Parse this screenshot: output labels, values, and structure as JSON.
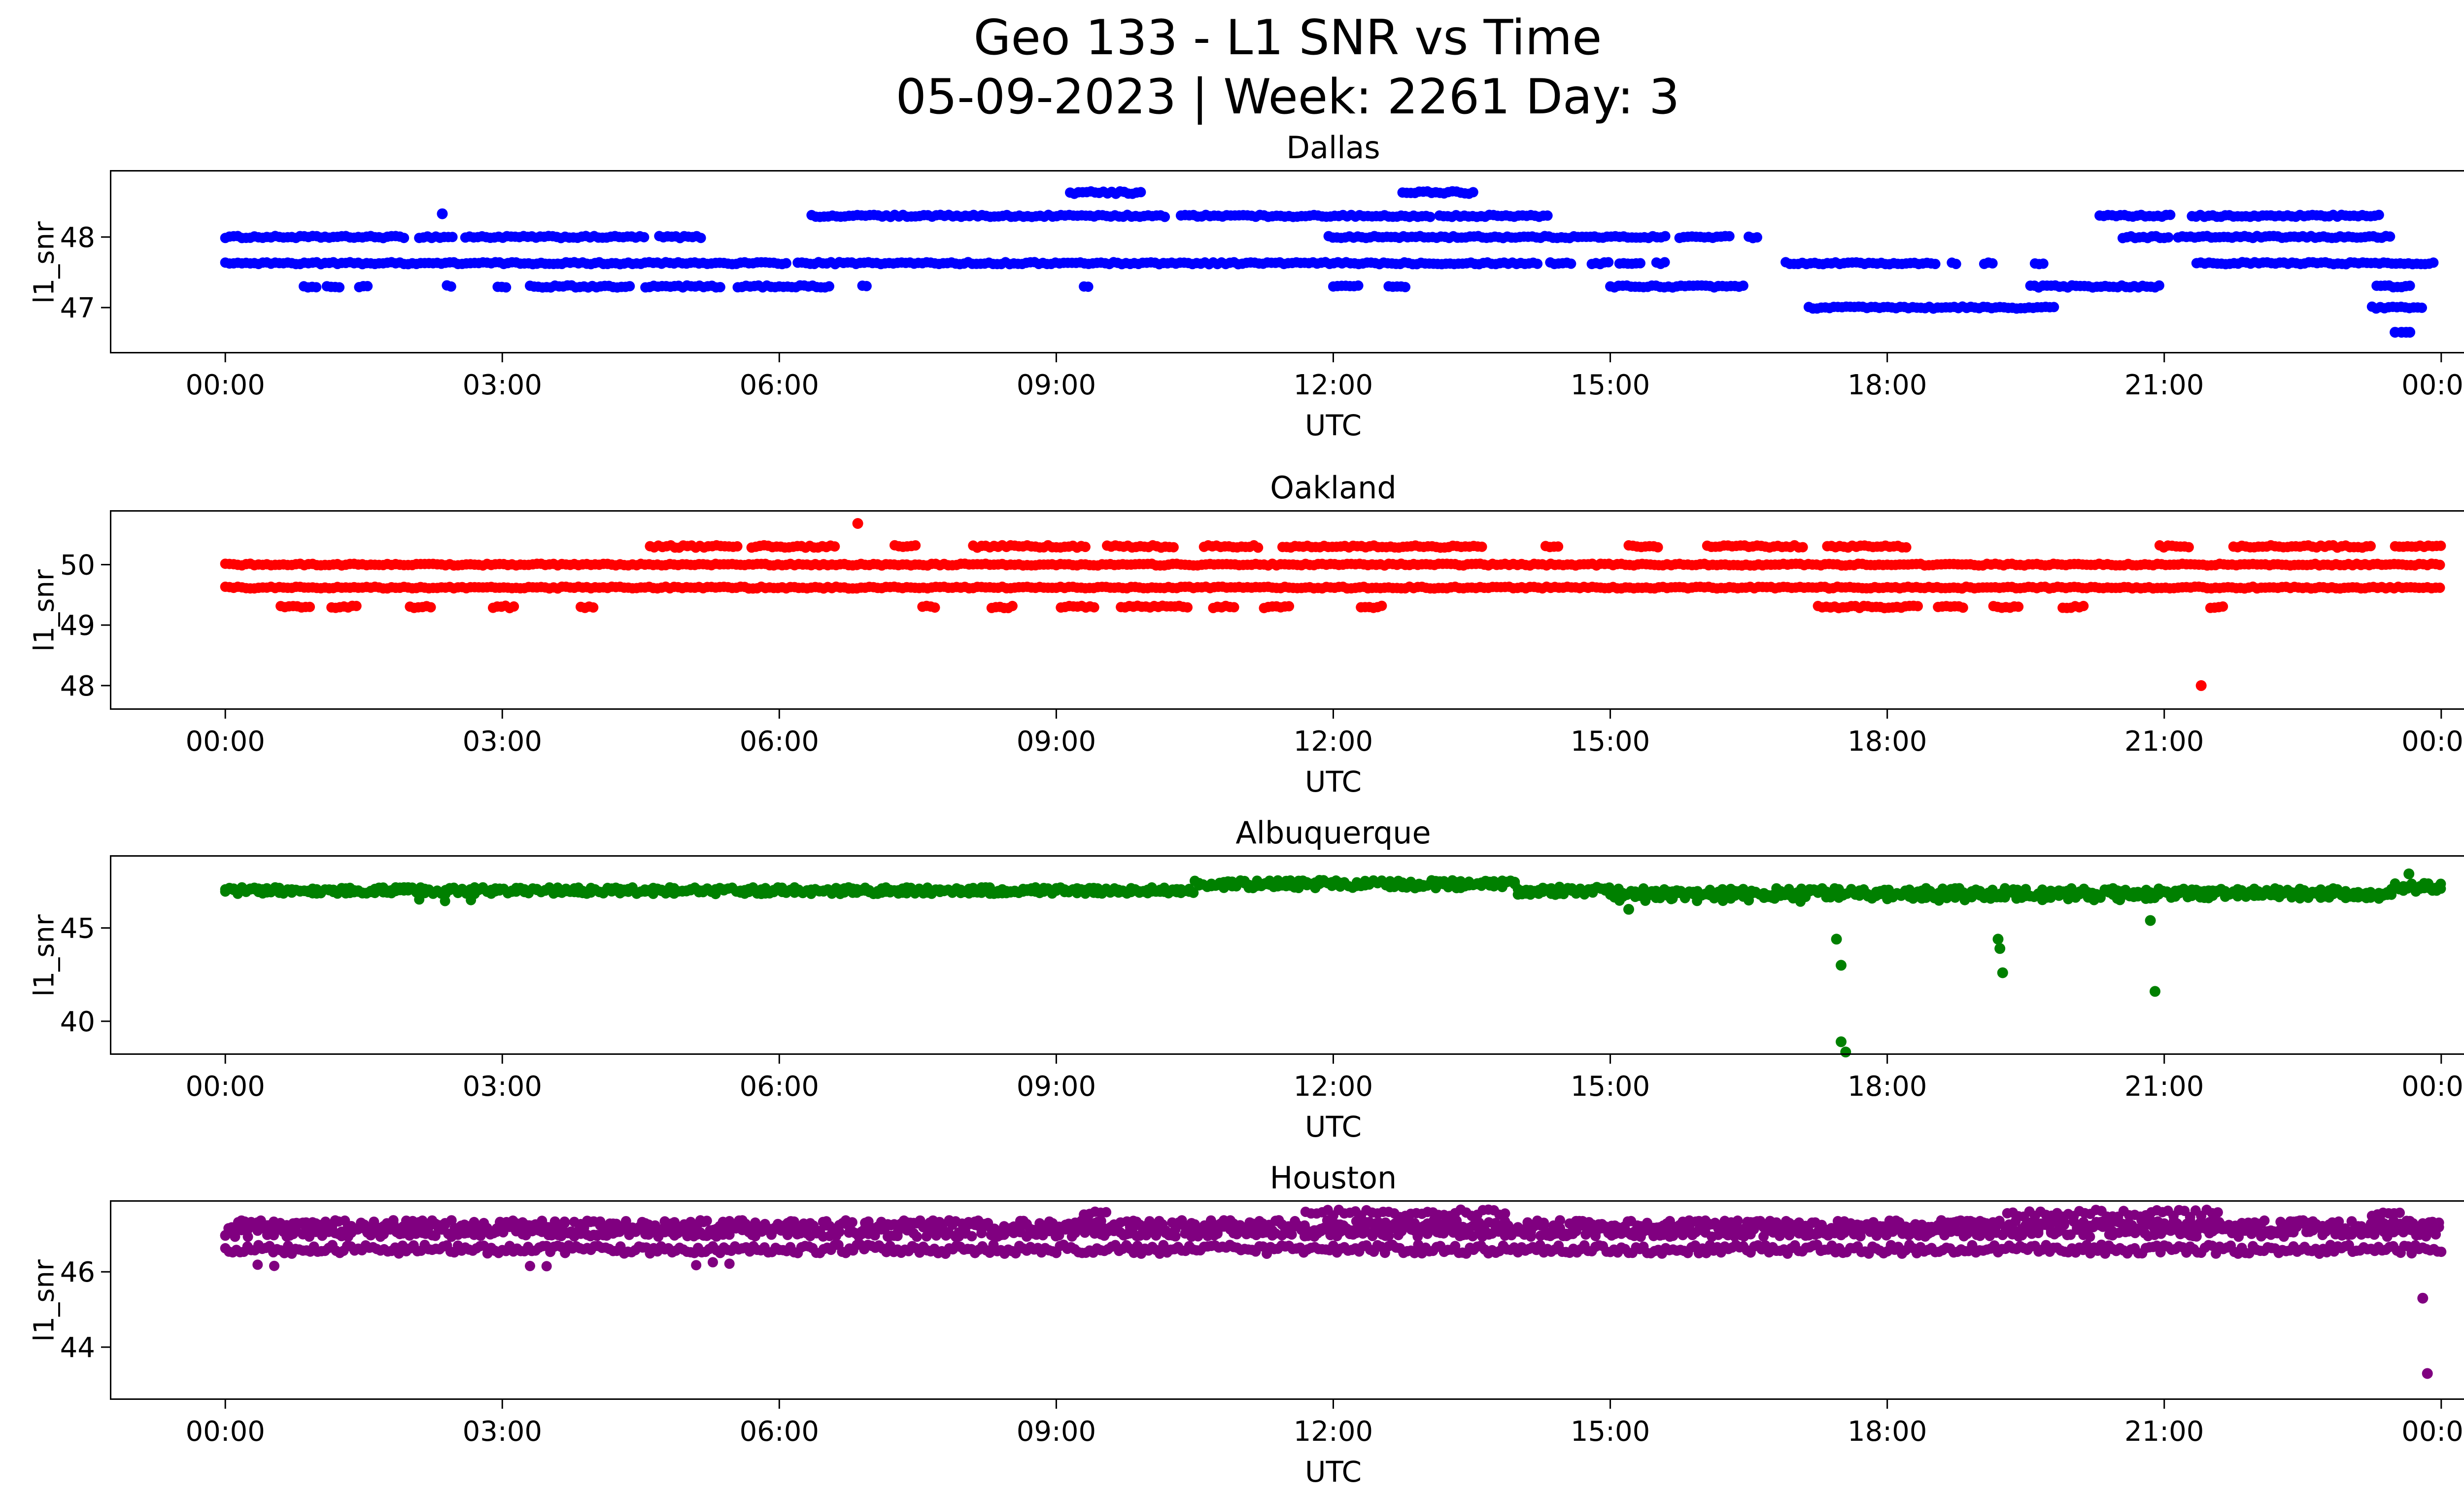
{
  "figure": {
    "title": "Geo 133 - L1 SNR vs Time",
    "subtitle": "05-09-2023 | Week: 2261 Day: 3",
    "background": "#ffffff"
  },
  "chart_data": [
    {
      "type": "scatter",
      "title": "Dallas",
      "color": "#0000ff",
      "xlabel": "UTC",
      "ylabel": "l1_snr",
      "xlim": [
        -1.25,
        25.25
      ],
      "ylim": [
        46.35,
        48.95
      ],
      "xticks": [
        0,
        3,
        6,
        9,
        12,
        15,
        18,
        21,
        24
      ],
      "xtick_labels": [
        "00:00",
        "03:00",
        "06:00",
        "09:00",
        "12:00",
        "15:00",
        "18:00",
        "21:00",
        "00:00"
      ],
      "yticks": [
        47,
        48
      ],
      "grid": false,
      "legend": "none",
      "bands": [
        {
          "y": 48.0,
          "jitter": 0.015,
          "segments": [
            [
              0.0,
              1.95
            ],
            [
              2.1,
              2.5
            ],
            [
              2.6,
              4.55
            ],
            [
              4.7,
              5.15
            ],
            [
              11.95,
              15.6
            ],
            [
              15.75,
              16.3
            ],
            [
              16.5,
              16.62
            ],
            [
              20.55,
              21.05
            ],
            [
              21.15,
              23.45
            ]
          ]
        },
        {
          "y": 47.63,
          "jitter": 0.015,
          "segments": [
            [
              0.0,
              6.1
            ],
            [
              6.2,
              14.25
            ],
            [
              14.35,
              14.6
            ],
            [
              14.8,
              15.0
            ],
            [
              15.1,
              15.35
            ],
            [
              15.5,
              15.6
            ],
            [
              16.9,
              18.55
            ],
            [
              18.7,
              18.78
            ],
            [
              19.05,
              19.15
            ],
            [
              19.6,
              19.7
            ],
            [
              21.35,
              23.95
            ]
          ]
        },
        {
          "y": 47.3,
          "jitter": 0.015,
          "segments": [
            [
              0.85,
              1.0
            ],
            [
              1.1,
              1.25
            ],
            [
              1.45,
              1.55
            ],
            [
              2.4,
              2.48
            ],
            [
              2.95,
              3.05
            ],
            [
              3.3,
              4.4
            ],
            [
              4.55,
              5.4
            ],
            [
              5.55,
              6.55
            ],
            [
              6.9,
              6.98
            ],
            [
              9.3,
              9.38
            ],
            [
              12.0,
              12.3
            ],
            [
              12.6,
              12.8
            ],
            [
              15.0,
              16.45
            ],
            [
              19.55,
              20.95
            ],
            [
              23.3,
              23.7
            ]
          ]
        },
        {
          "y": 47.0,
          "jitter": 0.015,
          "segments": [
            [
              17.15,
              19.85
            ],
            [
              23.25,
              23.8
            ]
          ]
        },
        {
          "y": 48.3,
          "jitter": 0.015,
          "segments": [
            [
              6.35,
              10.2
            ],
            [
              10.35,
              13.05
            ],
            [
              13.15,
              14.35
            ],
            [
              20.3,
              21.1
            ],
            [
              21.3,
              23.35
            ]
          ]
        },
        {
          "y": 48.63,
          "jitter": 0.02,
          "segments": [
            [
              9.15,
              9.95
            ],
            [
              12.75,
              13.55
            ]
          ]
        }
      ],
      "points": [
        [
          2.35,
          48.33
        ],
        [
          23.5,
          46.65
        ],
        [
          23.57,
          46.65
        ],
        [
          23.62,
          46.65
        ],
        [
          23.66,
          46.65
        ]
      ]
    },
    {
      "type": "scatter",
      "title": "Oakland",
      "color": "#ff0000",
      "xlabel": "UTC",
      "ylabel": "l1_snr",
      "xlim": [
        -1.25,
        25.25
      ],
      "ylim": [
        47.6,
        50.9
      ],
      "xticks": [
        0,
        3,
        6,
        9,
        12,
        15,
        18,
        21,
        24
      ],
      "xtick_labels": [
        "00:00",
        "03:00",
        "06:00",
        "09:00",
        "12:00",
        "15:00",
        "18:00",
        "21:00",
        "00:00"
      ],
      "yticks": [
        48,
        49,
        50
      ],
      "grid": false,
      "legend": "none",
      "bands": [
        {
          "y": 50.0,
          "jitter": 0.015,
          "segments": [
            [
              0.0,
              24.0
            ]
          ]
        },
        {
          "y": 49.62,
          "jitter": 0.015,
          "segments": [
            [
              0.0,
              24.0
            ]
          ]
        },
        {
          "y": 50.3,
          "jitter": 0.02,
          "segments": [
            [
              4.6,
              5.55
            ],
            [
              5.7,
              6.6
            ],
            [
              7.25,
              7.5
            ],
            [
              8.1,
              9.35
            ],
            [
              9.55,
              10.3
            ],
            [
              10.6,
              11.2
            ],
            [
              11.45,
              13.65
            ],
            [
              14.3,
              14.45
            ],
            [
              15.2,
              15.55
            ],
            [
              16.05,
              17.1
            ],
            [
              17.35,
              18.25
            ],
            [
              20.95,
              21.3
            ],
            [
              21.75,
              23.25
            ],
            [
              23.5,
              24.0
            ]
          ]
        },
        {
          "y": 49.3,
          "jitter": 0.02,
          "segments": [
            [
              0.6,
              0.95
            ],
            [
              1.15,
              1.45
            ],
            [
              2.0,
              2.25
            ],
            [
              2.9,
              3.15
            ],
            [
              3.85,
              4.0
            ],
            [
              7.55,
              7.72
            ],
            [
              8.3,
              8.55
            ],
            [
              9.05,
              9.45
            ],
            [
              9.7,
              10.45
            ],
            [
              10.7,
              10.95
            ],
            [
              11.25,
              11.55
            ],
            [
              12.3,
              12.55
            ],
            [
              17.25,
              18.35
            ],
            [
              18.55,
              18.85
            ],
            [
              19.15,
              19.45
            ],
            [
              19.9,
              20.15
            ],
            [
              21.5,
              21.65
            ]
          ]
        }
      ],
      "points": [
        [
          6.85,
          50.68
        ],
        [
          21.4,
          48.0
        ]
      ]
    },
    {
      "type": "scatter",
      "title": "Albuquerque",
      "color": "#008000",
      "xlabel": "UTC",
      "ylabel": "l1_snr",
      "xlim": [
        -1.25,
        25.25
      ],
      "ylim": [
        38.2,
        48.9
      ],
      "xticks": [
        0,
        3,
        6,
        9,
        12,
        15,
        18,
        21,
        24
      ],
      "xtick_labels": [
        "00:00",
        "03:00",
        "06:00",
        "09:00",
        "12:00",
        "15:00",
        "18:00",
        "21:00",
        "00:00"
      ],
      "yticks": [
        40,
        45
      ],
      "grid": false,
      "legend": "none",
      "bands": [
        {
          "y": 47.0,
          "jitter": 0.18,
          "density": 2,
          "segments": [
            [
              0.0,
              10.5
            ]
          ]
        },
        {
          "y": 47.35,
          "jitter": 0.22,
          "density": 2,
          "segments": [
            [
              10.5,
              14.0
            ]
          ]
        },
        {
          "y": 47.0,
          "jitter": 0.22,
          "density": 2,
          "segments": [
            [
              14.0,
              15.0
            ]
          ]
        },
        {
          "y": 46.85,
          "jitter": 0.28,
          "density": 2,
          "segments": [
            [
              15.0,
              23.5
            ]
          ]
        },
        {
          "y": 47.2,
          "jitter": 0.25,
          "density": 2,
          "segments": [
            [
              23.5,
              24.0
            ]
          ]
        },
        {
          "y": 46.5,
          "jitter": 0.1,
          "step": 0.28,
          "segments": [
            [
              2.1,
              2.9
            ],
            [
              15.1,
              17.2
            ],
            [
              18.0,
              21.0
            ]
          ]
        }
      ],
      "points": [
        [
          15.2,
          46.0
        ],
        [
          17.45,
          44.4
        ],
        [
          17.5,
          43.0
        ],
        [
          17.5,
          38.9
        ],
        [
          17.55,
          38.35
        ],
        [
          19.2,
          44.4
        ],
        [
          19.22,
          43.9
        ],
        [
          19.25,
          42.6
        ],
        [
          20.85,
          45.4
        ],
        [
          20.9,
          41.6
        ],
        [
          23.65,
          47.9
        ]
      ]
    },
    {
      "type": "scatter",
      "title": "Houston",
      "color": "#800080",
      "xlabel": "UTC",
      "ylabel": "l1_snr",
      "xlim": [
        -1.25,
        25.25
      ],
      "ylim": [
        42.6,
        47.9
      ],
      "xticks": [
        0,
        3,
        6,
        9,
        12,
        15,
        18,
        21,
        24
      ],
      "xtick_labels": [
        "00:00",
        "03:00",
        "06:00",
        "09:00",
        "12:00",
        "15:00",
        "18:00",
        "21:00",
        "00:00"
      ],
      "yticks": [
        44,
        46
      ],
      "grid": false,
      "legend": "none",
      "bands": [
        {
          "y": 47.15,
          "jitter": 0.22,
          "step": 0.035,
          "density": 2,
          "segments": [
            [
              0.0,
              24.0
            ]
          ]
        },
        {
          "y": 46.6,
          "jitter": 0.12,
          "step": 0.04,
          "segments": [
            [
              0.0,
              24.0
            ]
          ]
        },
        {
          "y": 47.55,
          "jitter": 0.1,
          "step": 0.06,
          "segments": [
            [
              9.3,
              9.55
            ],
            [
              11.7,
              13.9
            ],
            [
              19.3,
              21.6
            ],
            [
              23.25,
              23.6
            ]
          ]
        },
        {
          "y": 46.2,
          "jitter": 0.07,
          "step": 0.18,
          "segments": [
            [
              0.35,
              0.55
            ],
            [
              3.3,
              3.6
            ],
            [
              5.1,
              5.5
            ]
          ]
        }
      ],
      "points": [
        [
          23.8,
          45.3
        ],
        [
          23.85,
          43.3
        ]
      ]
    }
  ]
}
